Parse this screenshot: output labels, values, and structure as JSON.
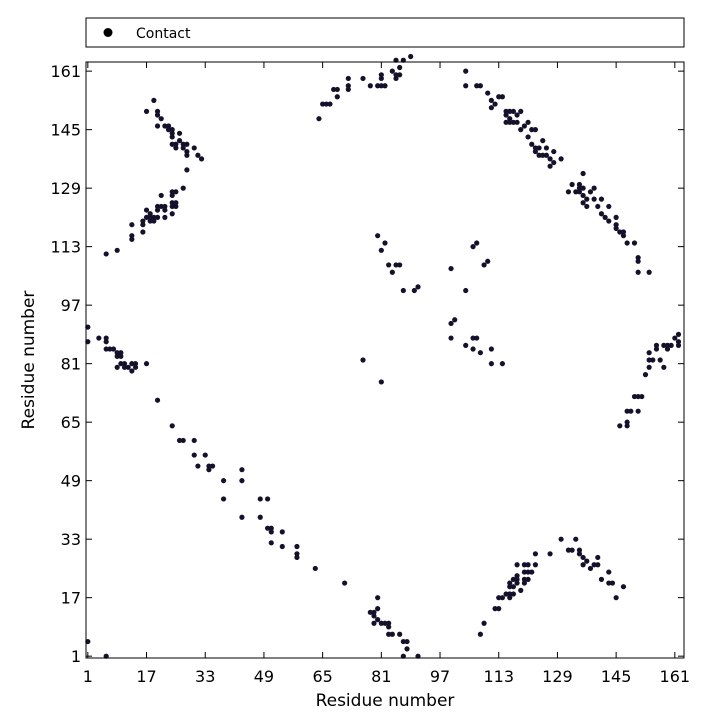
{
  "chart_data": {
    "type": "scatter",
    "title": "",
    "xlabel": "Residue number",
    "ylabel": "Residue number",
    "xlim": [
      0.5,
      163.5
    ],
    "ylim": [
      0.5,
      163.5
    ],
    "xticks": [
      1,
      17,
      33,
      49,
      65,
      81,
      97,
      113,
      129,
      145,
      161
    ],
    "yticks": [
      1,
      17,
      33,
      49,
      65,
      81,
      97,
      113,
      129,
      145,
      161
    ],
    "legend": {
      "position": "top",
      "entries": [
        "Contact"
      ]
    },
    "marker_color": "#15112b",
    "series": [
      {
        "name": "Contact",
        "points": [
          [
            1,
            91
          ],
          [
            1,
            87
          ],
          [
            4,
            88
          ],
          [
            6,
            88
          ],
          [
            6,
            87
          ],
          [
            6,
            85
          ],
          [
            7,
            85
          ],
          [
            8,
            85
          ],
          [
            9,
            84
          ],
          [
            9,
            83
          ],
          [
            10,
            84
          ],
          [
            10,
            83
          ],
          [
            10,
            81
          ],
          [
            9,
            80
          ],
          [
            11,
            81
          ],
          [
            11,
            80
          ],
          [
            12,
            80
          ],
          [
            13,
            81
          ],
          [
            13,
            79
          ],
          [
            14,
            81
          ],
          [
            14,
            80
          ],
          [
            17,
            81
          ],
          [
            20,
            71
          ],
          [
            24,
            64
          ],
          [
            26,
            60
          ],
          [
            27,
            60
          ],
          [
            30,
            60
          ],
          [
            30,
            56
          ],
          [
            31,
            53
          ],
          [
            33,
            56
          ],
          [
            34,
            53
          ],
          [
            34,
            52
          ],
          [
            35,
            53
          ],
          [
            38,
            49
          ],
          [
            38,
            44
          ],
          [
            43,
            52
          ],
          [
            43,
            49
          ],
          [
            43,
            39
          ],
          [
            48,
            44
          ],
          [
            48,
            39
          ],
          [
            50,
            44
          ],
          [
            50,
            36
          ],
          [
            51,
            36
          ],
          [
            51,
            35
          ],
          [
            51,
            32
          ],
          [
            54,
            35
          ],
          [
            54,
            31
          ],
          [
            58,
            31
          ],
          [
            58,
            29
          ],
          [
            58,
            28
          ],
          [
            63,
            25
          ],
          [
            71,
            21
          ],
          [
            78,
            13
          ],
          [
            79,
            13
          ],
          [
            79,
            12
          ],
          [
            79,
            10
          ],
          [
            80,
            17
          ],
          [
            80,
            14
          ],
          [
            80,
            11
          ],
          [
            81,
            10
          ],
          [
            82,
            10
          ],
          [
            83,
            10
          ],
          [
            83,
            9
          ],
          [
            83,
            7
          ],
          [
            84,
            7
          ],
          [
            86,
            7
          ],
          [
            87,
            5
          ],
          [
            88,
            5
          ],
          [
            88,
            3
          ],
          [
            87,
            1
          ],
          [
            91,
            1
          ],
          [
            1,
            5
          ],
          [
            6,
            1
          ],
          [
            6,
            111
          ],
          [
            9,
            112
          ],
          [
            13,
            115
          ],
          [
            13,
            116
          ],
          [
            13,
            119
          ],
          [
            16,
            117
          ],
          [
            16,
            119
          ],
          [
            16,
            120
          ],
          [
            17,
            121
          ],
          [
            17,
            123
          ],
          [
            18,
            120
          ],
          [
            18,
            121
          ],
          [
            18,
            122
          ],
          [
            19,
            120
          ],
          [
            19,
            121
          ],
          [
            20,
            121
          ],
          [
            20,
            123
          ],
          [
            20,
            124
          ],
          [
            21,
            124
          ],
          [
            21,
            127
          ],
          [
            22,
            121
          ],
          [
            22,
            123
          ],
          [
            22,
            124
          ],
          [
            24,
            122
          ],
          [
            24,
            124
          ],
          [
            24,
            125
          ],
          [
            24,
            127
          ],
          [
            24,
            128
          ],
          [
            25,
            124
          ],
          [
            25,
            125
          ],
          [
            25,
            128
          ],
          [
            27,
            129
          ],
          [
            17,
            150
          ],
          [
            19,
            153
          ],
          [
            20,
            149
          ],
          [
            20,
            150
          ],
          [
            20,
            146
          ],
          [
            21,
            148
          ],
          [
            22,
            146
          ],
          [
            23,
            146
          ],
          [
            23,
            145
          ],
          [
            24,
            143
          ],
          [
            24,
            141
          ],
          [
            24,
            144
          ],
          [
            24,
            145
          ],
          [
            25,
            141
          ],
          [
            25,
            140
          ],
          [
            26,
            144
          ],
          [
            26,
            142
          ],
          [
            27,
            140
          ],
          [
            27,
            141
          ],
          [
            28,
            138
          ],
          [
            28,
            141
          ],
          [
            28,
            139
          ],
          [
            28,
            134
          ],
          [
            30,
            140
          ],
          [
            31,
            138
          ],
          [
            32,
            137
          ],
          [
            64,
            148
          ],
          [
            65,
            152
          ],
          [
            66,
            152
          ],
          [
            67,
            152
          ],
          [
            68,
            156
          ],
          [
            69,
            156
          ],
          [
            69,
            154
          ],
          [
            72,
            156
          ],
          [
            72,
            157
          ],
          [
            72,
            159
          ],
          [
            76,
            159
          ],
          [
            78,
            157
          ],
          [
            80,
            157
          ],
          [
            81,
            157
          ],
          [
            81,
            160
          ],
          [
            81,
            159
          ],
          [
            82,
            157
          ],
          [
            84,
            161
          ],
          [
            85,
            159
          ],
          [
            85,
            160
          ],
          [
            85,
            164
          ],
          [
            86,
            162
          ],
          [
            86,
            160
          ],
          [
            87,
            164
          ],
          [
            89,
            165
          ],
          [
            104,
            161
          ],
          [
            104,
            157
          ],
          [
            107,
            157
          ],
          [
            108,
            157
          ],
          [
            110,
            155
          ],
          [
            111,
            151
          ],
          [
            111,
            153
          ],
          [
            112,
            152
          ],
          [
            113,
            154
          ],
          [
            114,
            154
          ],
          [
            115,
            149
          ],
          [
            115,
            150
          ],
          [
            115,
            147
          ],
          [
            116,
            150
          ],
          [
            116,
            148
          ],
          [
            116,
            147
          ],
          [
            117,
            150
          ],
          [
            117,
            147
          ],
          [
            118,
            149
          ],
          [
            118,
            147
          ],
          [
            119,
            150
          ],
          [
            119,
            145
          ],
          [
            120,
            146
          ],
          [
            121,
            143
          ],
          [
            121,
            147
          ],
          [
            122,
            145
          ],
          [
            122,
            141
          ],
          [
            123,
            145
          ],
          [
            123,
            139
          ],
          [
            123,
            140
          ],
          [
            124,
            138
          ],
          [
            124,
            140
          ],
          [
            125,
            138
          ],
          [
            125,
            142
          ],
          [
            126,
            138
          ],
          [
            126,
            140
          ],
          [
            127,
            135
          ],
          [
            127,
            137
          ],
          [
            128,
            136
          ],
          [
            128,
            139
          ],
          [
            130,
            137
          ],
          [
            132,
            128
          ],
          [
            133,
            130
          ],
          [
            134,
            128
          ],
          [
            135,
            128
          ],
          [
            135,
            130
          ],
          [
            135,
            129
          ],
          [
            136,
            125
          ],
          [
            136,
            127
          ],
          [
            136,
            129
          ],
          [
            136,
            133
          ],
          [
            137,
            124
          ],
          [
            137,
            126
          ],
          [
            138,
            128
          ],
          [
            139,
            129
          ],
          [
            139,
            126
          ],
          [
            140,
            124
          ],
          [
            141,
            126
          ],
          [
            141,
            122
          ],
          [
            142,
            121
          ],
          [
            143,
            124
          ],
          [
            143,
            120
          ],
          [
            145,
            121
          ],
          [
            145,
            119
          ],
          [
            145,
            118
          ],
          [
            146,
            117
          ],
          [
            147,
            116
          ],
          [
            147,
            117
          ],
          [
            148,
            114
          ],
          [
            150,
            114
          ],
          [
            151,
            110
          ],
          [
            151,
            109
          ],
          [
            151,
            106
          ],
          [
            154,
            106
          ],
          [
            80,
            116
          ],
          [
            81,
            112
          ],
          [
            82,
            114
          ],
          [
            83,
            108
          ],
          [
            84,
            106
          ],
          [
            85,
            108
          ],
          [
            86,
            108
          ],
          [
            87,
            101
          ],
          [
            90,
            101
          ],
          [
            91,
            102
          ],
          [
            100,
            107
          ],
          [
            104,
            101
          ],
          [
            106,
            113
          ],
          [
            107,
            114
          ],
          [
            109,
            108
          ],
          [
            110,
            109
          ],
          [
            100,
            92
          ],
          [
            101,
            93
          ],
          [
            100,
            88
          ],
          [
            104,
            86
          ],
          [
            106,
            88
          ],
          [
            106,
            85
          ],
          [
            107,
            88
          ],
          [
            108,
            84
          ],
          [
            111,
            85
          ],
          [
            111,
            81
          ],
          [
            114,
            81
          ],
          [
            76,
            82
          ],
          [
            81,
            76
          ],
          [
            108,
            7
          ],
          [
            109,
            10
          ],
          [
            112,
            14
          ],
          [
            113,
            14
          ],
          [
            113,
            17
          ],
          [
            114,
            17
          ],
          [
            115,
            18
          ],
          [
            116,
            17
          ],
          [
            116,
            18
          ],
          [
            116,
            20
          ],
          [
            116,
            21
          ],
          [
            117,
            18
          ],
          [
            117,
            20
          ],
          [
            117,
            22
          ],
          [
            118,
            21
          ],
          [
            118,
            22
          ],
          [
            118,
            23
          ],
          [
            118,
            26
          ],
          [
            119,
            19
          ],
          [
            120,
            21
          ],
          [
            120,
            22
          ],
          [
            120,
            24
          ],
          [
            120,
            26
          ],
          [
            121,
            22
          ],
          [
            121,
            24
          ],
          [
            121,
            26
          ],
          [
            122,
            24
          ],
          [
            123,
            26
          ],
          [
            123,
            29
          ],
          [
            127,
            29
          ],
          [
            130,
            33
          ],
          [
            132,
            30
          ],
          [
            133,
            30
          ],
          [
            134,
            33
          ],
          [
            135,
            29
          ],
          [
            135,
            30
          ],
          [
            136,
            28
          ],
          [
            136,
            26
          ],
          [
            137,
            27
          ],
          [
            138,
            25
          ],
          [
            139,
            26
          ],
          [
            140,
            28
          ],
          [
            140,
            26
          ],
          [
            141,
            22
          ],
          [
            143,
            24
          ],
          [
            143,
            21
          ],
          [
            144,
            21
          ],
          [
            145,
            17
          ],
          [
            147,
            20
          ],
          [
            146,
            64
          ],
          [
            148,
            64
          ],
          [
            148,
            65
          ],
          [
            148,
            68
          ],
          [
            149,
            68
          ],
          [
            150,
            72
          ],
          [
            151,
            72
          ],
          [
            151,
            68
          ],
          [
            152,
            72
          ],
          [
            153,
            78
          ],
          [
            154,
            80
          ],
          [
            154,
            82
          ],
          [
            154,
            84
          ],
          [
            155,
            82
          ],
          [
            156,
            85
          ],
          [
            156,
            86
          ],
          [
            157,
            82
          ],
          [
            158,
            86
          ],
          [
            158,
            80
          ],
          [
            159,
            86
          ],
          [
            159,
            85
          ],
          [
            160,
            86
          ],
          [
            161,
            88
          ],
          [
            162,
            87
          ],
          [
            162,
            89
          ],
          [
            162,
            86
          ]
        ]
      }
    ]
  }
}
